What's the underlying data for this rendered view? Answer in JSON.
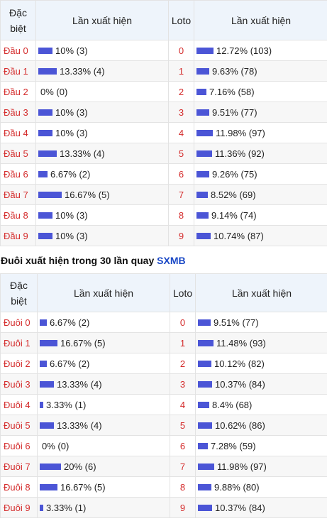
{
  "colors": {
    "bar": "#4b55d6",
    "label_red": "#d42b2b",
    "header_bg": "#eef4fb",
    "accent_blue": "#1b49c6"
  },
  "head_table": {
    "headers": {
      "col1_line1": "Đặc",
      "col1_line2": "biệt",
      "col2": "Lần xuất hiện",
      "col3": "Loto",
      "col4": "Lần xuất hiện"
    },
    "rows": [
      {
        "label": "Đầu 0",
        "pct": 10,
        "stat": "10% (3)",
        "loto": "0",
        "loto_pct": 12.72,
        "loto_stat": "12.72% (103)"
      },
      {
        "label": "Đầu 1",
        "pct": 13.33,
        "stat": "13.33% (4)",
        "loto": "1",
        "loto_pct": 9.63,
        "loto_stat": "9.63% (78)"
      },
      {
        "label": "Đầu 2",
        "pct": 0,
        "stat": "0% (0)",
        "loto": "2",
        "loto_pct": 7.16,
        "loto_stat": "7.16% (58)"
      },
      {
        "label": "Đầu 3",
        "pct": 10,
        "stat": "10% (3)",
        "loto": "3",
        "loto_pct": 9.51,
        "loto_stat": "9.51% (77)"
      },
      {
        "label": "Đầu 4",
        "pct": 10,
        "stat": "10% (3)",
        "loto": "4",
        "loto_pct": 11.98,
        "loto_stat": "11.98% (97)"
      },
      {
        "label": "Đầu 5",
        "pct": 13.33,
        "stat": "13.33% (4)",
        "loto": "5",
        "loto_pct": 11.36,
        "loto_stat": "11.36% (92)"
      },
      {
        "label": "Đầu 6",
        "pct": 6.67,
        "stat": "6.67% (2)",
        "loto": "6",
        "loto_pct": 9.26,
        "loto_stat": "9.26% (75)"
      },
      {
        "label": "Đầu 7",
        "pct": 16.67,
        "stat": "16.67% (5)",
        "loto": "7",
        "loto_pct": 8.52,
        "loto_stat": "8.52% (69)"
      },
      {
        "label": "Đầu 8",
        "pct": 10,
        "stat": "10% (3)",
        "loto": "8",
        "loto_pct": 9.14,
        "loto_stat": "9.14% (74)"
      },
      {
        "label": "Đầu 9",
        "pct": 10,
        "stat": "10% (3)",
        "loto": "9",
        "loto_pct": 10.74,
        "loto_stat": "10.74% (87)"
      }
    ]
  },
  "tail_section": {
    "title": "Đuôi xuất hiện trong 30 lần quay",
    "title_accent": "SXMB"
  },
  "tail_table": {
    "headers": {
      "col1_line1": "Đặc",
      "col1_line2": "biệt",
      "col2": "Lần xuất hiện",
      "col3": "Loto",
      "col4": "Lần xuất hiện"
    },
    "rows": [
      {
        "label": "Đuôi 0",
        "pct": 6.67,
        "stat": "6.67% (2)",
        "loto": "0",
        "loto_pct": 9.51,
        "loto_stat": "9.51% (77)"
      },
      {
        "label": "Đuôi 1",
        "pct": 16.67,
        "stat": "16.67% (5)",
        "loto": "1",
        "loto_pct": 11.48,
        "loto_stat": "11.48% (93)"
      },
      {
        "label": "Đuôi 2",
        "pct": 6.67,
        "stat": "6.67% (2)",
        "loto": "2",
        "loto_pct": 10.12,
        "loto_stat": "10.12% (82)"
      },
      {
        "label": "Đuôi 3",
        "pct": 13.33,
        "stat": "13.33% (4)",
        "loto": "3",
        "loto_pct": 10.37,
        "loto_stat": "10.37% (84)"
      },
      {
        "label": "Đuôi 4",
        "pct": 3.33,
        "stat": "3.33% (1)",
        "loto": "4",
        "loto_pct": 8.4,
        "loto_stat": "8.4% (68)"
      },
      {
        "label": "Đuôi 5",
        "pct": 13.33,
        "stat": "13.33% (4)",
        "loto": "5",
        "loto_pct": 10.62,
        "loto_stat": "10.62% (86)"
      },
      {
        "label": "Đuôi 6",
        "pct": 0,
        "stat": "0% (0)",
        "loto": "6",
        "loto_pct": 7.28,
        "loto_stat": "7.28% (59)"
      },
      {
        "label": "Đuôi 7",
        "pct": 20,
        "stat": "20% (6)",
        "loto": "7",
        "loto_pct": 11.98,
        "loto_stat": "11.98% (97)"
      },
      {
        "label": "Đuôi 8",
        "pct": 16.67,
        "stat": "16.67% (5)",
        "loto": "8",
        "loto_pct": 9.88,
        "loto_stat": "9.88% (80)"
      },
      {
        "label": "Đuôi 9",
        "pct": 3.33,
        "stat": "3.33% (1)",
        "loto": "9",
        "loto_pct": 10.37,
        "loto_stat": "10.37% (84)"
      }
    ]
  }
}
